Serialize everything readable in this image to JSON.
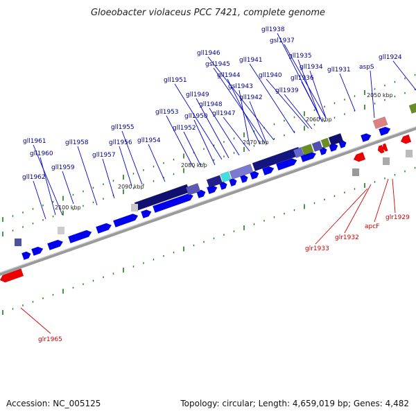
{
  "title": "Gloeobacter violaceus PCC 7421, complete genome",
  "footer": {
    "accession": "Accession: NC_005125",
    "summary": "Topology: circular; Length: 4,659,019 bp; Genes: 4,482"
  },
  "colors": {
    "forward_label": "#00008b",
    "reverse_label": "#cc0000",
    "forward_gene": "#0000ee",
    "reverse_gene": "#ee0000",
    "backbone": "#888888",
    "tick": "#006400"
  },
  "kbp_ticks": [
    "2050 kbp",
    "2060 kbp",
    "2070 kbp",
    "2080 kbp",
    "2090 kbp",
    "2100 kbp"
  ],
  "forward_labels": [
    "gll1938",
    "gsl1937",
    "gll1946",
    "gll1935",
    "gll1941",
    "gsl1945",
    "gll1934",
    "aspS",
    "gll1924",
    "gll1944",
    "gll1940",
    "gll1936",
    "gll1931",
    "gll1951",
    "gsl1943",
    "gll1939",
    "gll1949",
    "gll1942",
    "gll1948",
    "gll1953",
    "gll1950",
    "gll1947",
    "gll1955",
    "gll1952",
    "gll1961",
    "gll1958",
    "gll1956",
    "gll1954",
    "gll1960",
    "gll1957",
    "gll1959",
    "gll1962"
  ],
  "reverse_labels": [
    "glr1929",
    "apcF",
    "glr1932",
    "glr1933",
    "glr1965"
  ]
}
